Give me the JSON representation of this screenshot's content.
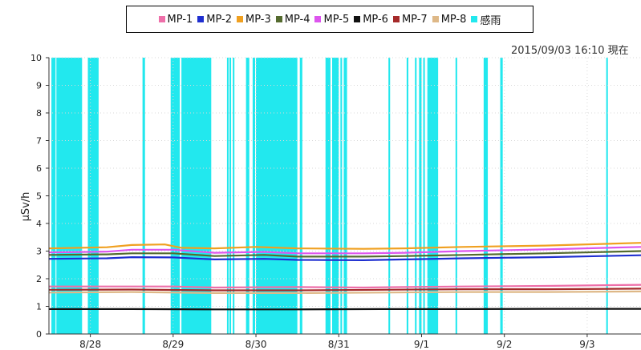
{
  "timestamp": "2015/09/03 16:10 現在",
  "chart_data": {
    "type": "line",
    "ylabel": "μSv/h",
    "ylim": [
      0,
      10
    ],
    "yticks": [
      "0",
      "1",
      "2",
      "3",
      "4",
      "5",
      "6",
      "7",
      "8",
      "9",
      "10"
    ],
    "x_tick_labels": [
      "8/28",
      "8/29",
      "8/30",
      "8/31",
      "9/1",
      "9/2",
      "9/3"
    ],
    "x_tick_positions_days": [
      0.5,
      1.5,
      2.5,
      3.5,
      4.5,
      5.5,
      6.5
    ],
    "xlim_days": [
      0,
      7.15
    ],
    "x_unit_note": "days since 8/27 20:00",
    "series": [
      {
        "name": "MP-1",
        "color": "#ee6fa9",
        "points": [
          [
            0,
            1.72
          ],
          [
            1,
            1.72
          ],
          [
            1.5,
            1.72
          ],
          [
            2.0,
            1.68
          ],
          [
            3.0,
            1.7
          ],
          [
            3.8,
            1.68
          ],
          [
            4.3,
            1.7
          ],
          [
            5.0,
            1.72
          ],
          [
            6.0,
            1.74
          ],
          [
            7.15,
            1.78
          ]
        ]
      },
      {
        "name": "MP-2",
        "color": "#1f2fd0",
        "points": [
          [
            0,
            2.72
          ],
          [
            0.7,
            2.74
          ],
          [
            1.0,
            2.78
          ],
          [
            1.5,
            2.77
          ],
          [
            2.0,
            2.7
          ],
          [
            2.6,
            2.72
          ],
          [
            3.0,
            2.68
          ],
          [
            3.8,
            2.67
          ],
          [
            4.3,
            2.7
          ],
          [
            5.0,
            2.74
          ],
          [
            6.0,
            2.78
          ],
          [
            7.15,
            2.85
          ]
        ]
      },
      {
        "name": "MP-3",
        "color": "#f0a020",
        "points": [
          [
            0,
            3.1
          ],
          [
            0.7,
            3.14
          ],
          [
            1.0,
            3.22
          ],
          [
            1.4,
            3.24
          ],
          [
            1.6,
            3.12
          ],
          [
            2.0,
            3.1
          ],
          [
            2.5,
            3.15
          ],
          [
            3.0,
            3.1
          ],
          [
            3.8,
            3.08
          ],
          [
            4.3,
            3.1
          ],
          [
            5.0,
            3.15
          ],
          [
            6.0,
            3.2
          ],
          [
            7.15,
            3.3
          ]
        ]
      },
      {
        "name": "MP-4",
        "color": "#556b2f",
        "points": [
          [
            0,
            2.86
          ],
          [
            0.7,
            2.88
          ],
          [
            1.0,
            2.92
          ],
          [
            1.5,
            2.92
          ],
          [
            2.0,
            2.82
          ],
          [
            2.6,
            2.86
          ],
          [
            3.0,
            2.8
          ],
          [
            3.8,
            2.8
          ],
          [
            4.3,
            2.82
          ],
          [
            5.0,
            2.86
          ],
          [
            6.0,
            2.92
          ],
          [
            7.15,
            3.0
          ]
        ]
      },
      {
        "name": "MP-5",
        "color": "#dd55ee",
        "points": [
          [
            0,
            2.95
          ],
          [
            0.7,
            2.98
          ],
          [
            1.0,
            3.05
          ],
          [
            1.5,
            3.05
          ],
          [
            2.0,
            2.94
          ],
          [
            2.6,
            2.97
          ],
          [
            3.0,
            2.92
          ],
          [
            3.8,
            2.92
          ],
          [
            4.3,
            2.94
          ],
          [
            5.0,
            3.0
          ],
          [
            6.0,
            3.06
          ],
          [
            7.15,
            3.15
          ]
        ]
      },
      {
        "name": "MP-6",
        "color": "#111111",
        "points": [
          [
            0,
            0.9
          ],
          [
            1.0,
            0.9
          ],
          [
            2.0,
            0.89
          ],
          [
            3.0,
            0.89
          ],
          [
            4.0,
            0.9
          ],
          [
            5.0,
            0.9
          ],
          [
            6.0,
            0.91
          ],
          [
            7.15,
            0.91
          ]
        ]
      },
      {
        "name": "MP-7",
        "color": "#a52a2a",
        "points": [
          [
            0,
            1.6
          ],
          [
            1.0,
            1.61
          ],
          [
            2.0,
            1.58
          ],
          [
            3.0,
            1.58
          ],
          [
            4.0,
            1.6
          ],
          [
            5.0,
            1.62
          ],
          [
            6.0,
            1.62
          ],
          [
            7.15,
            1.64
          ]
        ]
      },
      {
        "name": "MP-8",
        "color": "#deb887",
        "points": [
          [
            0,
            1.5
          ],
          [
            1.0,
            1.52
          ],
          [
            2.0,
            1.48
          ],
          [
            3.0,
            1.48
          ],
          [
            4.0,
            1.5
          ],
          [
            5.0,
            1.52
          ],
          [
            6.0,
            1.52
          ],
          [
            7.15,
            1.54
          ]
        ]
      }
    ],
    "rain": {
      "name": "感雨",
      "color": "#22e8ee",
      "intervals": [
        [
          0.03,
          0.08
        ],
        [
          0.09,
          0.4
        ],
        [
          0.47,
          0.6
        ],
        [
          1.13,
          1.16
        ],
        [
          1.47,
          1.58
        ],
        [
          1.6,
          1.96
        ],
        [
          2.15,
          2.17
        ],
        [
          2.18,
          2.2
        ],
        [
          2.22,
          2.24
        ],
        [
          2.38,
          2.42
        ],
        [
          2.46,
          2.49
        ],
        [
          2.5,
          3.0
        ],
        [
          3.03,
          3.06
        ],
        [
          3.34,
          3.4
        ],
        [
          3.42,
          3.5
        ],
        [
          3.52,
          3.54
        ],
        [
          3.56,
          3.6
        ],
        [
          4.1,
          4.12
        ],
        [
          4.32,
          4.34
        ],
        [
          4.42,
          4.44
        ],
        [
          4.47,
          4.5
        ],
        [
          4.52,
          4.54
        ],
        [
          4.57,
          4.7
        ],
        [
          4.91,
          4.93
        ],
        [
          5.25,
          5.3
        ],
        [
          5.45,
          5.48
        ],
        [
          6.73,
          6.75
        ]
      ]
    }
  }
}
